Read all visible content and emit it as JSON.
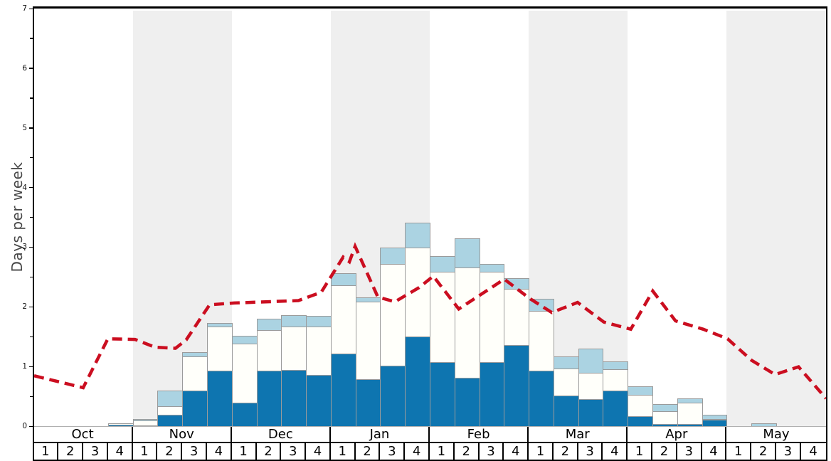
{
  "chart_data": {
    "type": "bar",
    "subtype": "stacked-bars-with-dashed-line-overlay",
    "title": "",
    "ylabel": "Days per week",
    "ylim": [
      0,
      7
    ],
    "yticks": [
      "0",
      "1",
      "2",
      "3",
      "4",
      "5",
      "6",
      "7"
    ],
    "ytick_minor_step": 0.5,
    "grid": "off",
    "legend": "none",
    "months": [
      "Oct",
      "Nov",
      "Dec",
      "Jan",
      "Feb",
      "Mar",
      "Apr",
      "May"
    ],
    "weeks_per_month": 4,
    "week_labels": [
      "1",
      "2",
      "3",
      "4"
    ],
    "shaded_months": [
      "Nov",
      "Jan",
      "Mar",
      "May"
    ],
    "band_color": "#efefef",
    "bar_border_color": "#9b9b9b",
    "categories": [
      "Oct-1",
      "Oct-2",
      "Oct-3",
      "Oct-4",
      "Nov-1",
      "Nov-2",
      "Nov-3",
      "Nov-4",
      "Dec-1",
      "Dec-2",
      "Dec-3",
      "Dec-4",
      "Jan-1",
      "Jan-2",
      "Jan-3",
      "Jan-4",
      "Feb-1",
      "Feb-2",
      "Feb-3",
      "Feb-4",
      "Mar-1",
      "Mar-2",
      "Mar-3",
      "Mar-4",
      "Apr-1",
      "Apr-2",
      "Apr-3",
      "Apr-4",
      "May-1",
      "May-2",
      "May-3",
      "May-4"
    ],
    "series": [
      {
        "name": "dark-blue-days",
        "stack_position": "bottom",
        "color": "#0e75b0",
        "values": [
          0,
          0,
          0,
          0.06,
          0.05,
          0.23,
          0.63,
          0.97,
          0.43,
          0.97,
          0.98,
          0.9,
          1.25,
          0.82,
          1.05,
          1.54,
          1.11,
          0.85,
          1.11,
          1.39,
          0.97,
          0.55,
          0.49,
          0.63,
          0.2,
          0.07,
          0.07,
          0.15,
          0,
          0,
          0,
          0
        ]
      },
      {
        "name": "white-days",
        "stack_position": "middle",
        "color": "#fffffa",
        "values": [
          0,
          0,
          0,
          0.02,
          0.08,
          0.14,
          0.57,
          0.73,
          0.99,
          0.67,
          0.73,
          0.8,
          1.15,
          1.3,
          1.7,
          1.49,
          1.51,
          1.85,
          1.51,
          0.95,
          1.0,
          0.45,
          0.44,
          0.36,
          0.36,
          0.22,
          0.36,
          0.01,
          0,
          0,
          0,
          0
        ]
      },
      {
        "name": "light-blue-days",
        "stack_position": "top",
        "color": "#abd3e2",
        "values": [
          0,
          0,
          0,
          0,
          0.02,
          0.26,
          0.08,
          0.07,
          0.13,
          0.2,
          0.19,
          0.19,
          0.2,
          0.07,
          0.28,
          0.42,
          0.27,
          0.48,
          0.13,
          0.18,
          0.2,
          0.2,
          0.41,
          0.13,
          0.14,
          0.12,
          0.07,
          0.07,
          0,
          0.08,
          0,
          0
        ]
      }
    ],
    "line": {
      "name": "red-dashed-average",
      "color": "#cb0e20",
      "style": "dashed",
      "dash": [
        14,
        8
      ],
      "width": 4.5,
      "points_week_value": [
        [
          0.0,
          0.88
        ],
        [
          1.98,
          0.68
        ],
        [
          2.98,
          1.5
        ],
        [
          4.08,
          1.49
        ],
        [
          4.88,
          1.36
        ],
        [
          5.71,
          1.34
        ],
        [
          6.14,
          1.48
        ],
        [
          7.09,
          2.07
        ],
        [
          8.09,
          2.1
        ],
        [
          10.68,
          2.14
        ],
        [
          11.6,
          2.28
        ],
        [
          12.49,
          2.87
        ],
        [
          12.74,
          2.79
        ],
        [
          12.97,
          3.05
        ],
        [
          13.89,
          2.2
        ],
        [
          14.58,
          2.12
        ],
        [
          15.56,
          2.36
        ],
        [
          16.13,
          2.55
        ],
        [
          17.16,
          2.0
        ],
        [
          19.0,
          2.5
        ],
        [
          20.01,
          2.18
        ],
        [
          20.92,
          1.94
        ],
        [
          21.96,
          2.11
        ],
        [
          23.02,
          1.78
        ],
        [
          24.11,
          1.66
        ],
        [
          25.0,
          2.3
        ],
        [
          25.92,
          1.8
        ],
        [
          27.04,
          1.66
        ],
        [
          28.02,
          1.5
        ],
        [
          28.99,
          1.14
        ],
        [
          29.94,
          0.9
        ],
        [
          30.89,
          1.03
        ],
        [
          32.0,
          0.5
        ]
      ]
    }
  }
}
